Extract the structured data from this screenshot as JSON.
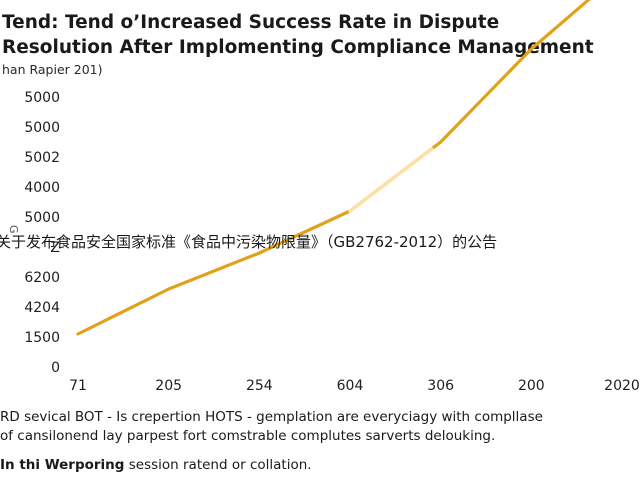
{
  "chart_data": {
    "type": "line",
    "title_lines": [
      "Tend: Tend o’Increased Success Rate in Dispute",
      "Resolution After Implomenting Compliance Management"
    ],
    "subtitle": "han Rapier 201)",
    "ylabel": "G",
    "y_tick_labels": [
      "0",
      "1500",
      "4204",
      "6200",
      "Z",
      "5000",
      "4000",
      "5002",
      "5000",
      "5000"
    ],
    "categories": [
      "71",
      "205",
      "254",
      "604",
      "306",
      "200",
      "2020"
    ],
    "grid": false,
    "legend": "none",
    "color": "#e0a21b",
    "highlight_color": "#fbe2a4",
    "series": [
      {
        "values": [
          1.1,
          2.6,
          3.8,
          5.2,
          7.5,
          10.6,
          13.2
        ]
      }
    ]
  },
  "overlay_text": "关于发布食品安全国家标准《食品中污染物限量》（GB2762-2012）的公告",
  "footer": {
    "line1": "RD sevical BOT - Is crepertion HOTS - gemplation are everyciagy with compllase",
    "line2": "of cansilonend lay parpest fort comstrable complutes sarverts delouking.",
    "line3_bold": "In thi Werporing",
    "line3_rest": " session ratend or collation."
  }
}
